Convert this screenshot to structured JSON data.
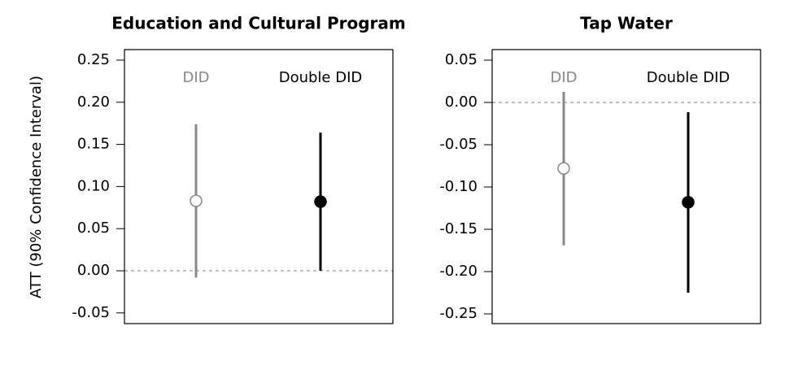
{
  "chart_data": [
    {
      "type": "pointrange",
      "title": "Education and Cultural Program",
      "ylabel": "ATT (90% Confidence Interval)",
      "categories": [
        "DID",
        "Double DID"
      ],
      "values": [
        0.083,
        0.082
      ],
      "lower": [
        -0.008,
        0.0
      ],
      "upper": [
        0.174,
        0.164
      ],
      "colors": [
        "#888888",
        "#000000"
      ],
      "marker_fill": [
        "#ffffff",
        "#000000"
      ],
      "ylim": [
        -0.0627,
        0.2625
      ],
      "yticks": [
        {
          "value": -0.05,
          "label": "-0.05"
        },
        {
          "value": 0,
          "label": "0.00"
        },
        {
          "value": 0.05,
          "label": "0.05"
        },
        {
          "value": 0.1,
          "label": "0.10"
        },
        {
          "value": 0.15,
          "label": "0.15"
        },
        {
          "value": 0.2,
          "label": "0.20"
        },
        {
          "value": 0.25,
          "label": "0.25"
        }
      ],
      "refline": 0
    },
    {
      "type": "pointrange",
      "title": "Tap Water",
      "categories": [
        "DID",
        "Double DID"
      ],
      "values": [
        -0.078,
        -0.118
      ],
      "lower": [
        -0.169,
        -0.225
      ],
      "upper": [
        0.0125,
        -0.0115
      ],
      "colors": [
        "#888888",
        "#000000"
      ],
      "marker_fill": [
        "#ffffff",
        "#000000"
      ],
      "ylim": [
        -0.2615,
        0.0625
      ],
      "yticks": [
        {
          "value": -0.25,
          "label": "-0.25"
        },
        {
          "value": -0.2,
          "label": "-0.20"
        },
        {
          "value": -0.15,
          "label": "-0.15"
        },
        {
          "value": -0.1,
          "label": "-0.10"
        },
        {
          "value": -0.05,
          "label": "-0.05"
        },
        {
          "value": 0,
          "label": "0.00"
        },
        {
          "value": 0.05,
          "label": "0.05"
        }
      ],
      "refline": 0
    }
  ]
}
